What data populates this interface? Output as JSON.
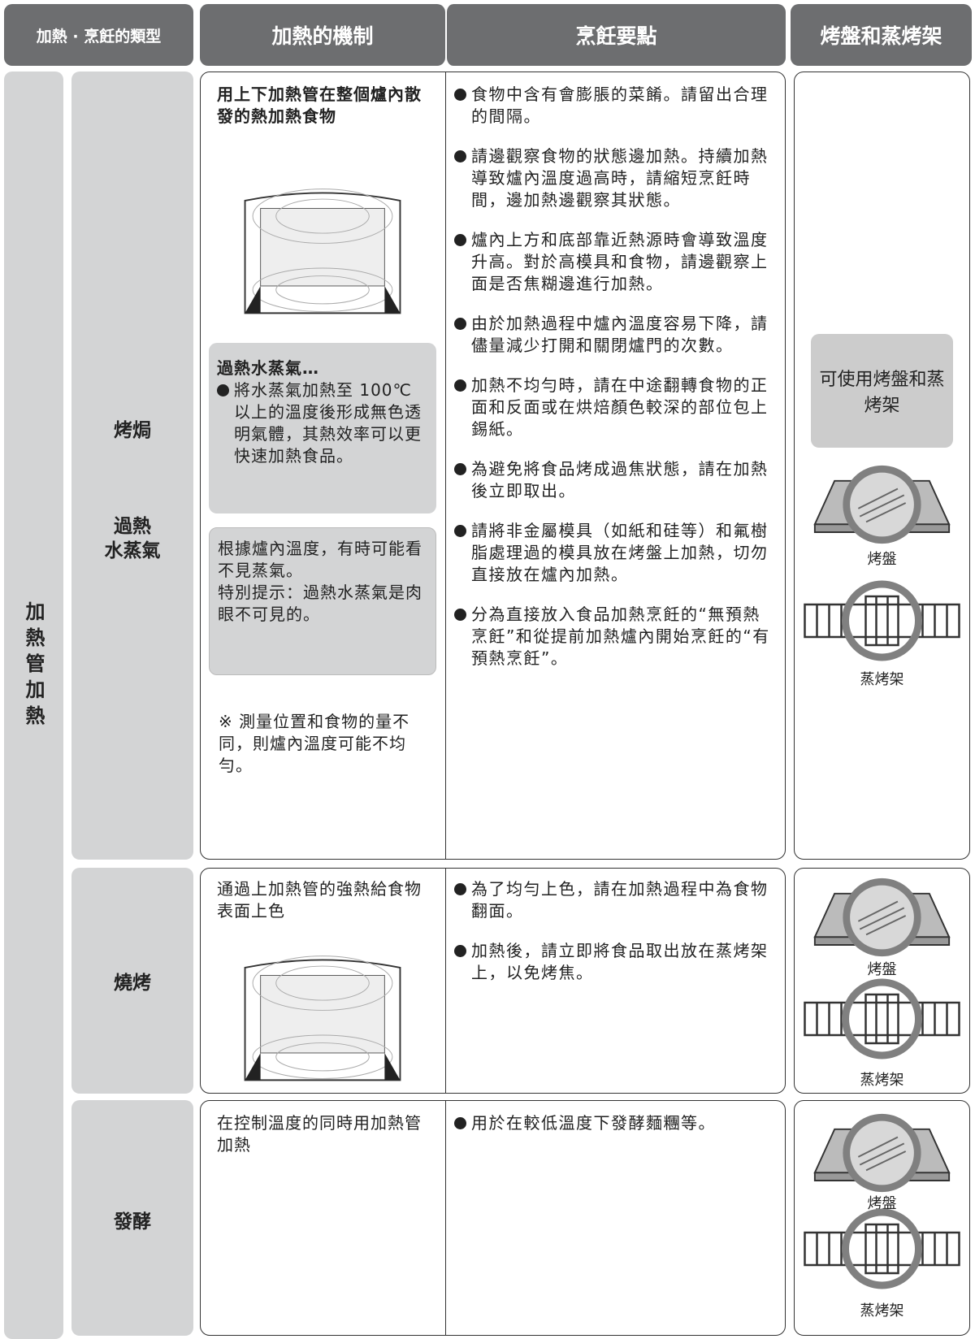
{
  "header": {
    "type": "加熱 · 烹飪的類型",
    "mechanism": "加熱的機制",
    "tips": "烹飪要點",
    "trays": "烤盤和蒸烤架"
  },
  "category": "加熱管加熱",
  "rows": [
    {
      "modes": [
        "烤焗"
      ],
      "modes_extra": [
        "過熱",
        "水蒸氣"
      ],
      "mechanism": "用上下加熱管在整個爐內散發的熱加熱食物",
      "steam_box": {
        "title": "過熱水蒸氣…",
        "text": "將水蒸氣加熱至 100℃以上的溫度後形成無色透明氣體，其熱效率可以更快速加熱食品。"
      },
      "visibility_box": [
        "根據爐內溫度，有時可能看不見蒸氣。",
        "特別提示：過熱水蒸氣是肉眼不可見的。"
      ],
      "note": "※ 測量位置和食物的量不同，則爐內溫度可能不均勻。",
      "tips": [
        "食物中含有會膨脹的菜餚。請留出合理的間隔。",
        "請邊觀察食物的狀態邊加熱。持續加熱導致爐內溫度過高時，請縮短烹飪時間，邊加熱邊觀察其狀態。",
        "爐內上方和底部靠近熱源時會導致溫度升高。對於高模具和食物，請邊觀察上面是否焦糊邊進行加熱。",
        "由於加熱過程中爐內溫度容易下降，請儘量減少打開和關閉爐門的次數。",
        "加熱不均勻時，請在中途翻轉食物的正面和反面或在烘焙顏色較深的部位包上錫紙。",
        "為避免將食品烤成過焦狀態，請在加熱後立即取出。",
        "請將非金屬模具（如紙和硅等）和氟樹脂處理過的模具放在烤盤上加熱，切勿直接放在爐內加熱。",
        "分為直接放入食品加熱烹飪的“無預熱烹飪”和從提前加熱爐內開始烹飪的“有預熱烹飪”。"
      ],
      "trays_note": "可使用烤盤和蒸烤架",
      "trays": [
        "烤盤",
        "蒸烤架"
      ]
    },
    {
      "modes": [
        "燒烤"
      ],
      "mechanism": "通過上加熱管的強熱給食物表面上色",
      "tips": [
        "為了均勻上色，請在加熱過程中為食物翻面。",
        "加熱後，請立即將食品取出放在蒸烤架上，以免烤焦。"
      ],
      "trays": [
        "烤盤",
        "蒸烤架"
      ]
    },
    {
      "modes": [
        "發酵"
      ],
      "mechanism": "在控制溫度的同時用加熱管加熱",
      "tips": [
        "用於在較低溫度下發酵麵糰等。"
      ],
      "trays": [
        "烤盤",
        "蒸烤架"
      ]
    }
  ]
}
